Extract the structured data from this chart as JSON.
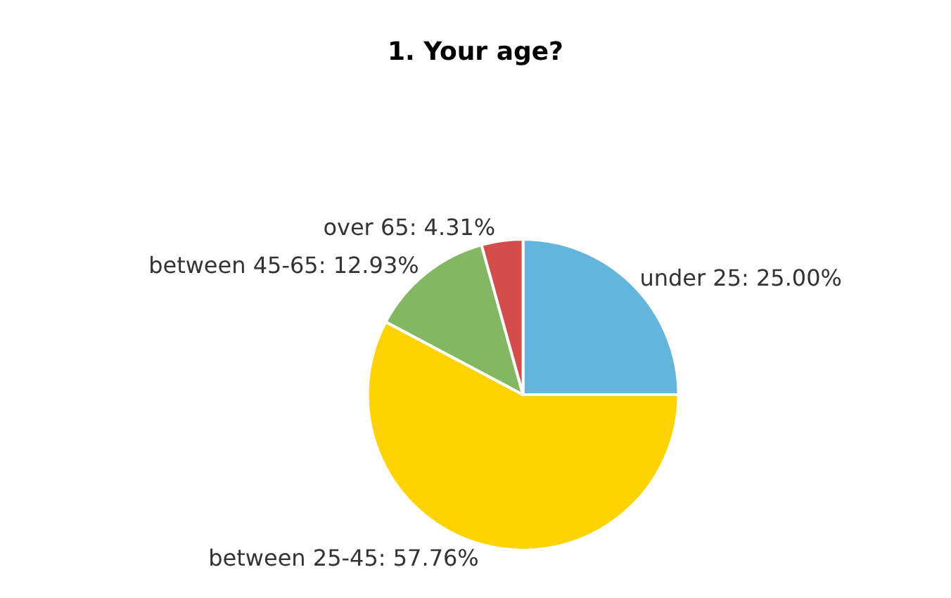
{
  "chart_data": {
    "type": "pie",
    "title": "1. Your age?",
    "categories": [
      "under 25",
      "between 25-45",
      "between 45-65",
      "over 65"
    ],
    "values": [
      25.0,
      57.76,
      12.93,
      4.31
    ],
    "value_labels": [
      "25.00%",
      "57.76%",
      "12.93%",
      "4.31%"
    ],
    "colors": [
      "#64b5dc",
      "#fdd303",
      "#84b761",
      "#d34d4b"
    ],
    "legend": false
  }
}
